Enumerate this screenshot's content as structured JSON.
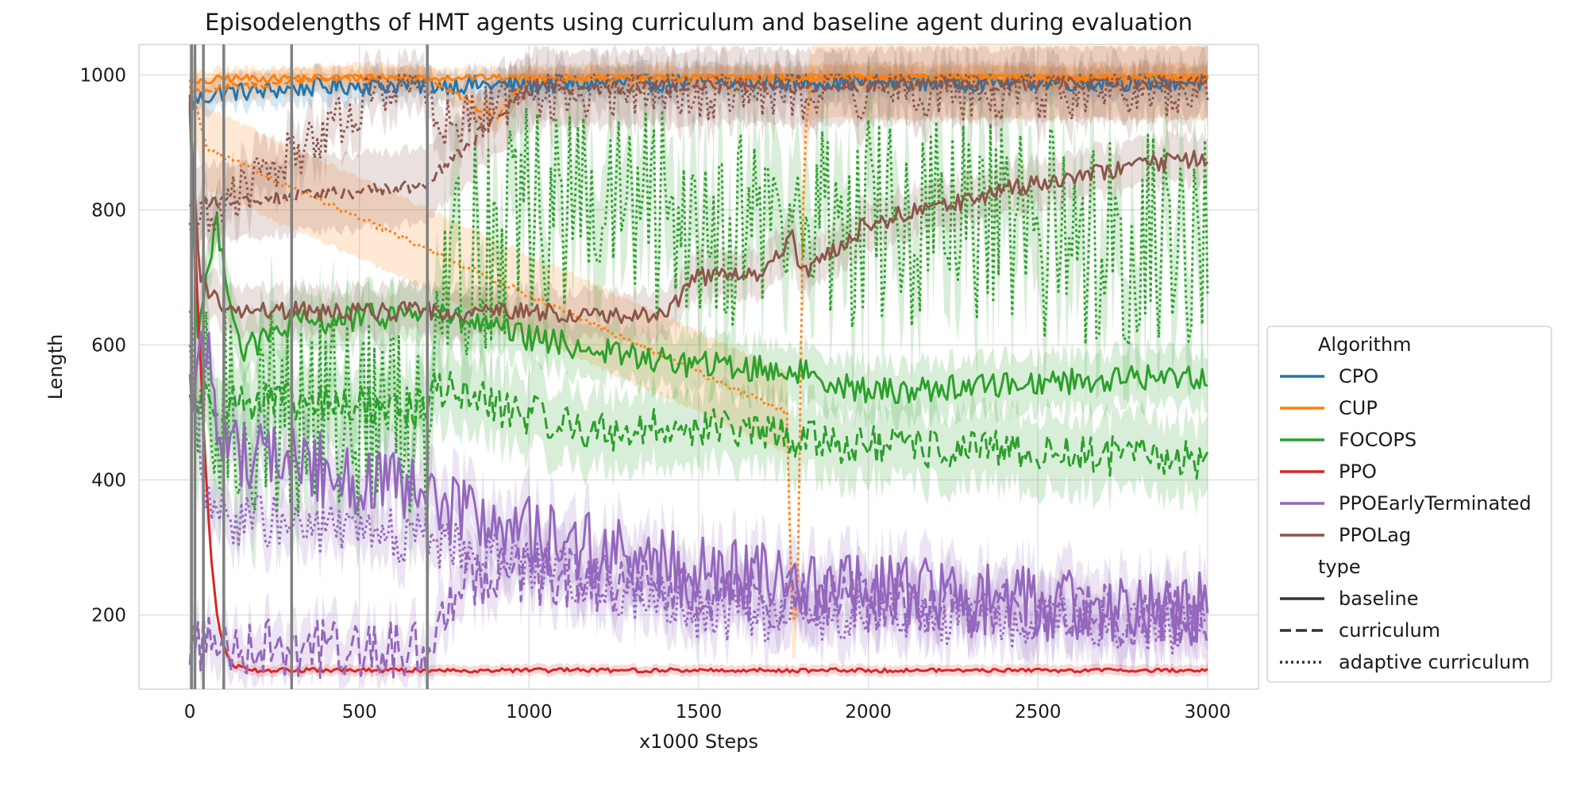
{
  "chart_data": {
    "type": "line",
    "title": "Episodelengths of HMT agents using curriculum and baseline agent during evaluation",
    "xlabel": "x1000 Steps",
    "ylabel": "Length",
    "xlim": [
      -150,
      3150
    ],
    "ylim": [
      90,
      1045
    ],
    "x_ticks": [
      0,
      500,
      1000,
      1500,
      2000,
      2500,
      3000
    ],
    "y_ticks": [
      200,
      400,
      600,
      800,
      1000
    ],
    "grid": true,
    "legend_position": "right",
    "legend_titles": {
      "algorithm": "Algorithm",
      "type": "type"
    },
    "vertical_lines": [
      5,
      15,
      40,
      100,
      300,
      700
    ],
    "algorithms": [
      {
        "name": "CPO",
        "color": "#1f77b4"
      },
      {
        "name": "CUP",
        "color": "#ff7f0e"
      },
      {
        "name": "FOCOPS",
        "color": "#2ca02c"
      },
      {
        "name": "PPO",
        "color": "#d62728"
      },
      {
        "name": "PPOEarlyTerminated",
        "color": "#9467bd"
      },
      {
        "name": "PPOLag",
        "color": "#8c564b"
      }
    ],
    "types": [
      {
        "name": "baseline",
        "dash": "solid"
      },
      {
        "name": "curriculum",
        "dash": "dashed"
      },
      {
        "name": "adaptive curriculum",
        "dash": "dotted"
      }
    ],
    "series": [
      {
        "algorithm": "CPO",
        "type": "baseline",
        "noise": 14,
        "band": 22,
        "x": [
          0,
          30,
          100,
          200,
          300,
          500,
          1000,
          1500,
          2000,
          2500,
          3000
        ],
        "y": [
          955,
          965,
          975,
          975,
          980,
          985,
          985,
          990,
          990,
          990,
          990
        ]
      },
      {
        "algorithm": "CUP",
        "type": "baseline",
        "noise": 6,
        "band": 15,
        "x": [
          0,
          100,
          1000,
          2000,
          3000
        ],
        "y": [
          985,
          995,
          997,
          998,
          998
        ]
      },
      {
        "algorithm": "CUP",
        "type": "curriculum",
        "noise": 6,
        "band": 20,
        "x": [
          0,
          300,
          400,
          700,
          900,
          1000,
          2000,
          3000
        ],
        "y": [
          975,
          990,
          995,
          995,
          935,
          995,
          996,
          995
        ]
      },
      {
        "algorithm": "CUP",
        "type": "adaptive curriculum",
        "noise": 4,
        "band": 60,
        "x": [
          0,
          50,
          1760,
          1775,
          1790,
          1810,
          1830,
          3000
        ],
        "y": [
          990,
          890,
          500,
          200,
          185,
          880,
          995,
          995
        ]
      },
      {
        "algorithm": "FOCOPS",
        "type": "baseline",
        "noise": 20,
        "band": 40,
        "x": [
          0,
          20,
          80,
          150,
          300,
          700,
          1000,
          1400,
          1800,
          2000,
          2500,
          3000
        ],
        "y": [
          960,
          620,
          780,
          590,
          630,
          650,
          610,
          575,
          560,
          530,
          545,
          555
        ]
      },
      {
        "algorithm": "FOCOPS",
        "type": "curriculum",
        "noise": 30,
        "band": 55,
        "x": [
          0,
          700,
          720,
          900,
          1200,
          1500,
          2000,
          2500,
          3000
        ],
        "y": [
          520,
          505,
          540,
          510,
          470,
          480,
          450,
          440,
          430
        ]
      },
      {
        "algorithm": "FOCOPS",
        "type": "adaptive curriculum",
        "noise": 160,
        "band": 90,
        "x": [
          0,
          700,
          720,
          1000,
          2000,
          3000
        ],
        "y": [
          495,
          495,
          700,
          800,
          780,
          750
        ]
      },
      {
        "algorithm": "PPO",
        "type": "baseline",
        "noise": 3,
        "band": 8,
        "x": [
          0,
          20,
          40,
          60,
          80,
          100,
          130,
          200,
          3000
        ],
        "y": [
          960,
          700,
          480,
          300,
          200,
          150,
          125,
          118,
          118
        ]
      },
      {
        "algorithm": "PPOEarlyTerminated",
        "type": "baseline",
        "noise": 55,
        "band": 45,
        "x": [
          0,
          50,
          100,
          300,
          700,
          1000,
          1500,
          2000,
          2500,
          3000
        ],
        "y": [
          530,
          600,
          450,
          430,
          370,
          320,
          260,
          240,
          215,
          210
        ]
      },
      {
        "algorithm": "PPOEarlyTerminated",
        "type": "curriculum",
        "noise": 45,
        "band": 40,
        "x": [
          0,
          700,
          720,
          800,
          1000,
          1500,
          2000,
          2500,
          3000
        ],
        "y": [
          160,
          145,
          175,
          260,
          260,
          230,
          220,
          205,
          200
        ]
      },
      {
        "algorithm": "PPOEarlyTerminated",
        "type": "adaptive curriculum",
        "noise": 40,
        "band": 40,
        "x": [
          0,
          50,
          200,
          700,
          1000,
          1500,
          2000,
          2500,
          3000
        ],
        "y": [
          600,
          350,
          340,
          310,
          280,
          200,
          200,
          190,
          180
        ]
      },
      {
        "algorithm": "PPOLag",
        "type": "baseline",
        "noise": 14,
        "band": 35,
        "x": [
          0,
          30,
          100,
          700,
          1000,
          1250,
          1400,
          1500,
          1700,
          1780,
          1800,
          2000,
          2500,
          3000
        ],
        "y": [
          960,
          700,
          650,
          650,
          650,
          640,
          650,
          700,
          710,
          760,
          700,
          780,
          840,
          880
        ]
      },
      {
        "algorithm": "PPOLag",
        "type": "curriculum",
        "noise": 10,
        "band": 55,
        "x": [
          0,
          700,
          720,
          1000,
          3000
        ],
        "y": [
          810,
          835,
          850,
          980,
          990
        ]
      },
      {
        "algorithm": "PPOLag",
        "type": "adaptive curriculum",
        "noise": 40,
        "band": 40,
        "x": [
          0,
          600,
          700,
          720,
          1000,
          3000
        ],
        "y": [
          770,
          990,
          990,
          920,
          970,
          975
        ]
      }
    ]
  }
}
